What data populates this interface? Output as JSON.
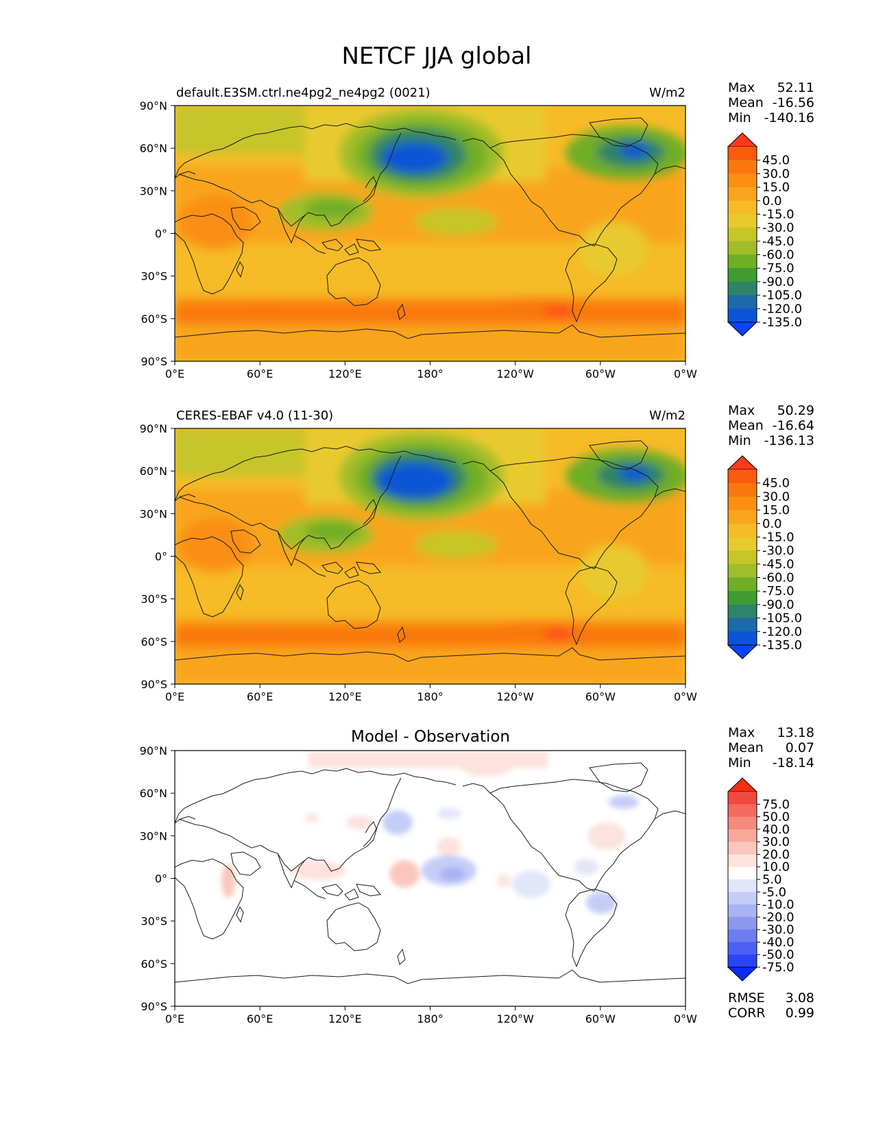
{
  "title": "NETCF JJA global",
  "panels": [
    {
      "label": "default.E3SM.ctrl.ne4pg2_ne4pg2 (0021)",
      "units": "W/m2",
      "stats": [
        {
          "label": "Max",
          "value": "52.11"
        },
        {
          "label": "Mean",
          "value": "-16.56"
        },
        {
          "label": "Min",
          "value": "-140.16"
        }
      ],
      "colorbar": {
        "tick_labels": [
          "45.0",
          "30.0",
          "15.0",
          "0.0",
          "-15.0",
          "-30.0",
          "-45.0",
          "-60.0",
          "-75.0",
          "-90.0",
          "-105.0",
          "-120.0",
          "-135.0"
        ],
        "colors": [
          "#ff3a1a",
          "#fc5a0f",
          "#f9780e",
          "#fa8f14",
          "#f9a51f",
          "#f6bb26",
          "#e8ca2d",
          "#c6c52a",
          "#a0bd2a",
          "#6fae25",
          "#3f9c30",
          "#2e8468",
          "#1c6aa8",
          "#0c55d6",
          "#0a44f8"
        ]
      }
    },
    {
      "label": "CERES-EBAF v4.0 (11-30)",
      "units": "W/m2",
      "stats": [
        {
          "label": "Max",
          "value": "50.29"
        },
        {
          "label": "Mean",
          "value": "-16.64"
        },
        {
          "label": "Min",
          "value": "-136.13"
        }
      ],
      "colorbar": {
        "tick_labels": [
          "45.0",
          "30.0",
          "15.0",
          "0.0",
          "-15.0",
          "-30.0",
          "-45.0",
          "-60.0",
          "-75.0",
          "-90.0",
          "-105.0",
          "-120.0",
          "-135.0"
        ],
        "colors": [
          "#ff3a1a",
          "#fc5a0f",
          "#f9780e",
          "#fa8f14",
          "#f9a51f",
          "#f6bb26",
          "#e8ca2d",
          "#c6c52a",
          "#a0bd2a",
          "#6fae25",
          "#3f9c30",
          "#2e8468",
          "#1c6aa8",
          "#0c55d6",
          "#0a44f8"
        ]
      }
    },
    {
      "title": "Model - Observation",
      "stats": [
        {
          "label": "Max",
          "value": "13.18"
        },
        {
          "label": "Mean",
          "value": "0.07"
        },
        {
          "label": "Min",
          "value": "-18.14"
        }
      ],
      "colorbar": {
        "tick_labels": [
          "75.0",
          "50.0",
          "40.0",
          "30.0",
          "20.0",
          "10.0",
          "5.0",
          "-5.0",
          "-10.0",
          "-20.0",
          "-30.0",
          "-40.0",
          "-50.0",
          "-75.0"
        ],
        "colors": [
          "#ff2e12",
          "#f2493e",
          "#f46a5e",
          "#f7897c",
          "#f9a89c",
          "#fbc6bc",
          "#fde2dd",
          "#ffffff",
          "#e1e6fb",
          "#c4cdf8",
          "#a7b3f3",
          "#8a98ee",
          "#6c7def",
          "#4d60f3",
          "#2a44f7",
          "#0a2cf9"
        ]
      },
      "extra_stats": [
        {
          "label": "RMSE",
          "value": "3.08"
        },
        {
          "label": "CORR",
          "value": "0.99"
        }
      ]
    }
  ],
  "axes": {
    "x_ticks": [
      "0°E",
      "60°E",
      "120°E",
      "180°",
      "120°W",
      "60°W",
      "0°W"
    ],
    "y_ticks": [
      "90°N",
      "60°N",
      "30°N",
      "0°",
      "30°S",
      "60°S",
      "90°S"
    ]
  }
}
